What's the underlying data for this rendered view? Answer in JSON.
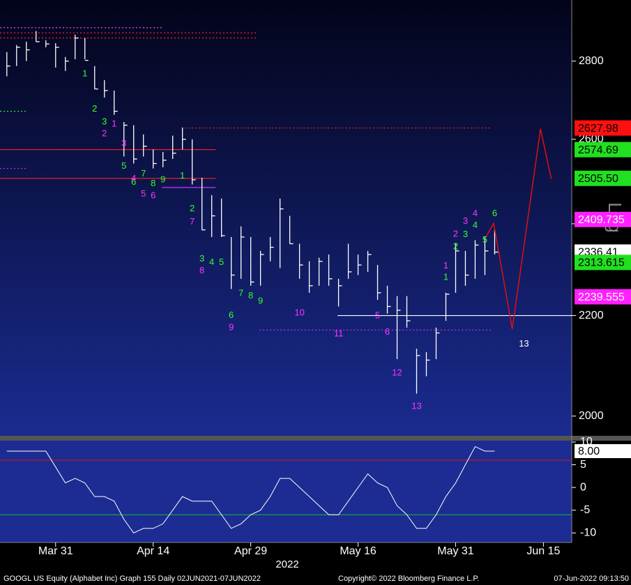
{
  "chart_data": [
    {
      "type": "ohlc",
      "log_scale": true,
      "scale_label": "Log",
      "xlim": [
        -0.7,
        57.9
      ],
      "ylim": [
        1963,
        2967
      ],
      "yticks": [
        2000,
        2200,
        2400,
        2600,
        2800
      ],
      "color": "#ffffff",
      "high": [
        2824,
        2843,
        2852,
        2881,
        2856,
        2848,
        2811,
        2871,
        2862,
        2787,
        2750,
        2723,
        2643,
        2635,
        2612,
        2575,
        2569,
        2609,
        2629,
        2600,
        2507,
        2466,
        2458,
        2370,
        2394,
        2370,
        2339,
        2370,
        2458,
        2418,
        2355,
        2316,
        2324,
        2331,
        2278,
        2355,
        2331,
        2339,
        2308,
        2263,
        2241,
        2241,
        2132,
        2125,
        2175,
        2248,
        2355,
        2339,
        2363,
        2370,
        2386
      ],
      "low": [
        2760,
        2787,
        2800,
        2852,
        2837,
        2783,
        2774,
        2805,
        2805,
        2727,
        2705,
        2661,
        2558,
        2541,
        2558,
        2529,
        2532,
        2552,
        2575,
        2491,
        2386,
        2370,
        2370,
        2256,
        2278,
        2263,
        2263,
        2316,
        2301,
        2355,
        2278,
        2248,
        2263,
        2263,
        2219,
        2278,
        2286,
        2293,
        2233,
        2204,
        2111,
        2175,
        2043,
        2077,
        2111,
        2189,
        2248,
        2263,
        2278,
        2286,
        2331
      ],
      "close": [
        2787,
        2837,
        2830,
        2852,
        2846,
        2837,
        2800,
        2862,
        2802,
        2727,
        2723,
        2670,
        2635,
        2552,
        2583,
        2541,
        2549,
        2566,
        2600,
        2502,
        2386,
        2418,
        2373,
        2286,
        2370,
        2271,
        2331,
        2347,
        2434,
        2355,
        2308,
        2263,
        2316,
        2278,
        2263,
        2293,
        2308,
        2331,
        2248,
        2219,
        2211,
        2189,
        2118,
        2109,
        2164,
        2245,
        2339,
        2286,
        2352,
        2339,
        2336.41
      ],
      "levels": [
        {
          "value": 2574.69,
          "from": -0.7,
          "to": 21.4,
          "color": "#ff2020",
          "dashed": false
        },
        {
          "value": 2505.5,
          "from": -0.7,
          "to": 21.4,
          "color": "#ff2020",
          "dashed": false
        },
        {
          "value": 2627.98,
          "from": 17.9,
          "to": 49.7,
          "color": "#ff2020",
          "dashed": true
        },
        {
          "value": 2484,
          "from": 15.9,
          "to": 21.4,
          "color": "#d030ff",
          "dashed": false
        },
        {
          "value": 2170,
          "from": 25.9,
          "to": 49.7,
          "color": "#d030ff",
          "dashed": true
        },
        {
          "value": 2200,
          "from": 33.9,
          "to": 57.9,
          "color": "#ffffff",
          "dashed": false
        },
        {
          "value": 2890,
          "from": -0.7,
          "to": 15.9,
          "color": "#ff40ff",
          "dashed": true
        },
        {
          "value": 2876,
          "from": -0.7,
          "to": 25.7,
          "color": "#ff2020",
          "dashed": true
        },
        {
          "value": 2862,
          "from": -0.7,
          "to": 25.7,
          "color": "#ff2020",
          "dashed": true
        },
        {
          "value": 2670,
          "from": -0.7,
          "to": 2,
          "color": "#30ff30",
          "dashed": true
        },
        {
          "value": 2529,
          "from": -0.7,
          "to": 2,
          "color": "#d030ff",
          "dashed": true
        }
      ],
      "projection": {
        "color": "#e01010",
        "x": [
          49.1,
          49.9,
          51.8,
          54.7,
          55.8
        ],
        "y": [
          2370,
          2401,
          2172,
          2626,
          2504
        ]
      },
      "annotations": [
        {
          "text": "1",
          "x": 8,
          "y": 2766,
          "color": "#30ff30"
        },
        {
          "text": "2",
          "x": 9,
          "y": 2675,
          "color": "#30ff30"
        },
        {
          "text": "3",
          "x": 10,
          "y": 2643,
          "color": "#30ff30"
        },
        {
          "text": "5",
          "x": 12,
          "y": 2534,
          "color": "#30ff30"
        },
        {
          "text": "6",
          "x": 13,
          "y": 2496,
          "color": "#30ff30"
        },
        {
          "text": "7",
          "x": 14,
          "y": 2516,
          "color": "#30ff30"
        },
        {
          "text": "8",
          "x": 15,
          "y": 2493,
          "color": "#30ff30"
        },
        {
          "text": "9",
          "x": 16,
          "y": 2502,
          "color": "#30ff30"
        },
        {
          "text": "1",
          "x": 18,
          "y": 2511,
          "color": "#30ff30"
        },
        {
          "text": "2",
          "x": 19,
          "y": 2434,
          "color": "#30ff30"
        },
        {
          "text": "3",
          "x": 20,
          "y": 2321,
          "color": "#30ff30"
        },
        {
          "text": "4",
          "x": 21,
          "y": 2313,
          "color": "#30ff30"
        },
        {
          "text": "5",
          "x": 22,
          "y": 2313,
          "color": "#30ff30"
        },
        {
          "text": "6",
          "x": 23,
          "y": 2200,
          "color": "#30ff30"
        },
        {
          "text": "7",
          "x": 24,
          "y": 2246,
          "color": "#30ff30"
        },
        {
          "text": "8",
          "x": 25,
          "y": 2241,
          "color": "#30ff30"
        },
        {
          "text": "9",
          "x": 26,
          "y": 2230,
          "color": "#30ff30"
        },
        {
          "text": "1",
          "x": 45,
          "y": 2281,
          "color": "#30ff30"
        },
        {
          "text": "2",
          "x": 46,
          "y": 2348,
          "color": "#30ff30"
        },
        {
          "text": "3",
          "x": 47,
          "y": 2375,
          "color": "#30ff30"
        },
        {
          "text": "4",
          "x": 48,
          "y": 2396,
          "color": "#30ff30"
        },
        {
          "text": "5",
          "x": 49,
          "y": 2363,
          "color": "#30ff30"
        },
        {
          "text": "6",
          "x": 50,
          "y": 2423,
          "color": "#30ff30"
        },
        {
          "text": "1",
          "x": 11,
          "y": 2638,
          "color": "#ff33ff"
        },
        {
          "text": "2",
          "x": 10,
          "y": 2613,
          "color": "#ff33ff"
        },
        {
          "text": "3",
          "x": 12,
          "y": 2589,
          "color": "#ff33ff"
        },
        {
          "text": "4",
          "x": 13,
          "y": 2504,
          "color": "#ff33ff"
        },
        {
          "text": "5",
          "x": 14,
          "y": 2468,
          "color": "#ff33ff"
        },
        {
          "text": "6",
          "x": 15,
          "y": 2464,
          "color": "#ff33ff"
        },
        {
          "text": "7",
          "x": 19,
          "y": 2404,
          "color": "#ff33ff"
        },
        {
          "text": "8",
          "x": 20,
          "y": 2295,
          "color": "#ff33ff"
        },
        {
          "text": "9",
          "x": 23,
          "y": 2175,
          "color": "#ff33ff"
        },
        {
          "text": "10",
          "x": 30,
          "y": 2205,
          "color": "#ff33ff"
        },
        {
          "text": "11",
          "x": 34,
          "y": 2162,
          "color": "#ff33ff"
        },
        {
          "text": "5",
          "x": 38,
          "y": 2199,
          "color": "#ff33ff"
        },
        {
          "text": "6",
          "x": 39,
          "y": 2165,
          "color": "#ff33ff"
        },
        {
          "text": "12",
          "x": 40,
          "y": 2083,
          "color": "#ff33ff"
        },
        {
          "text": "13",
          "x": 42,
          "y": 2018,
          "color": "#ff33ff"
        },
        {
          "text": "1",
          "x": 45,
          "y": 2306,
          "color": "#ff33ff"
        },
        {
          "text": "2",
          "x": 46,
          "y": 2376,
          "color": "#ff33ff"
        },
        {
          "text": "3",
          "x": 47,
          "y": 2405,
          "color": "#ff33ff"
        },
        {
          "text": "4",
          "x": 48,
          "y": 2423,
          "color": "#ff33ff"
        },
        {
          "text": "13",
          "x": 53,
          "y": 2141,
          "color": "#ffffff"
        }
      ],
      "tags": [
        {
          "value": 2627.98,
          "color": "#ff1010",
          "text_color": "#000000"
        },
        {
          "value": 2574.69,
          "color": "#20e020",
          "text_color": "#000000"
        },
        {
          "value": 2505.5,
          "value_label": "2505.50",
          "color": "#20e020",
          "text_color": "#000000"
        },
        {
          "value": 2409.735,
          "color": "#ff20ff",
          "text_color": "#ffffff"
        },
        {
          "value": 2336.41,
          "color": "#ffffff",
          "text_color": "#000000"
        },
        {
          "value": 2313.615,
          "color": "#20e020",
          "text_color": "#000000"
        },
        {
          "value": 2239.555,
          "color": "#ff20ff",
          "text_color": "#ffffff"
        }
      ]
    },
    {
      "type": "line",
      "xlim": [
        -0.7,
        57.9
      ],
      "ylim": [
        -12.1,
        10.3
      ],
      "yticks": [
        10,
        5,
        0,
        -5,
        -10
      ],
      "color": "#ffffff",
      "values": [
        8,
        8,
        8,
        8,
        8,
        4.5,
        1,
        2,
        1,
        -2,
        -2,
        -3,
        -7,
        -10,
        -9,
        -9,
        -8,
        -5,
        -2,
        -3,
        -3,
        -3,
        -6,
        -9,
        -8,
        -6,
        -5,
        -2,
        2,
        2,
        0,
        -2,
        -4,
        -6,
        -6,
        -3,
        0,
        3,
        1,
        0,
        -4,
        -6,
        -9,
        -9,
        -6,
        -2,
        1,
        5,
        9,
        8,
        8
      ],
      "levels": [
        {
          "value": 6,
          "color": "#e01010"
        },
        {
          "value": -6,
          "color": "#10c040"
        }
      ],
      "tag": {
        "value": 8,
        "label": "8.00"
      },
      "xticks": [
        {
          "value": 5,
          "label": "Mar 31"
        },
        {
          "value": 15,
          "label": "Apr 14"
        },
        {
          "value": 25,
          "label": "Apr 29"
        },
        {
          "value": 36,
          "label": "May 16"
        },
        {
          "value": 46,
          "label": "May 31"
        },
        {
          "value": 55,
          "label": "Jun 15"
        }
      ],
      "xlabel": "2022"
    }
  ],
  "footer": {
    "left": "GOOGL US Equity (Alphabet Inc) Graph 155  Daily 02JUN2021-07JUN2022",
    "center": "Copyright© 2022 Bloomberg Finance L.P.",
    "right": "07-Jun-2022 09:13:50"
  }
}
